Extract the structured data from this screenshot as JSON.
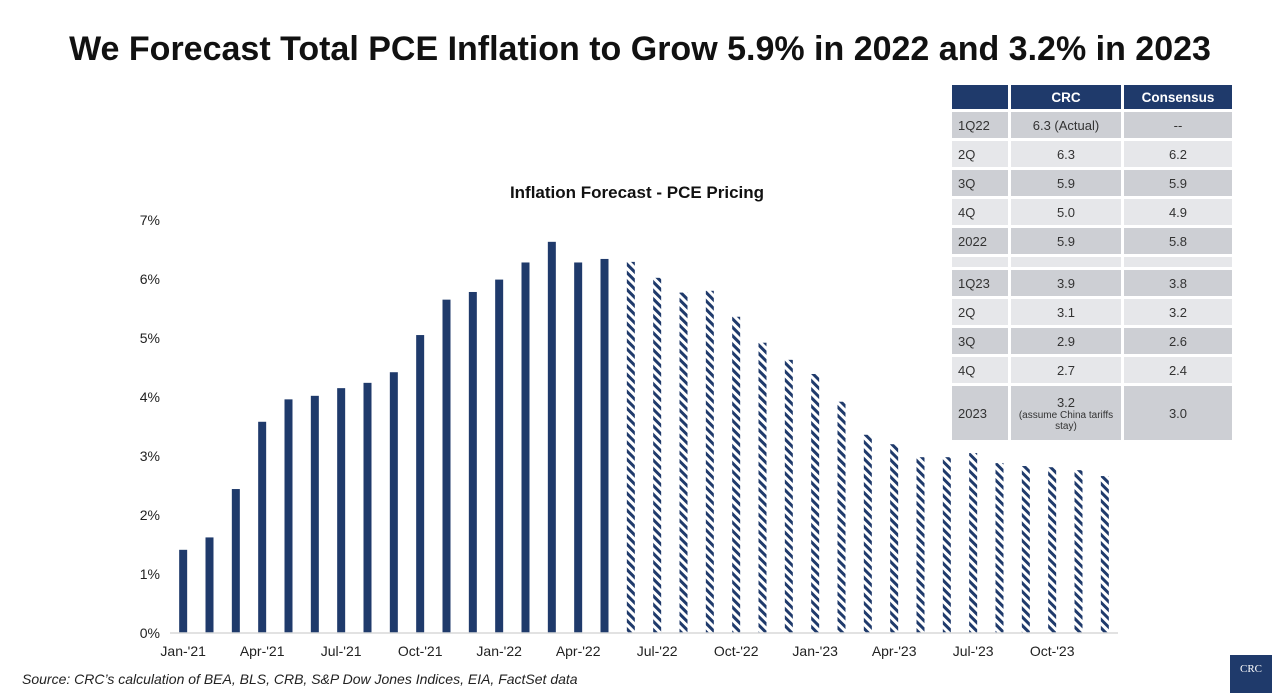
{
  "title": "We Forecast Total PCE Inflation to Grow 5.9% in 2022 and 3.2% in 2023",
  "source": "Source: CRC’s calculation of BEA, BLS, CRB, S&P Dow Jones Indices, EIA, FactSet data",
  "logo": "CRC",
  "colors": {
    "bar": "#1f3a6b",
    "header": "#1f3a6b"
  },
  "table": {
    "headers": [
      "",
      "CRC",
      "Consensus"
    ],
    "rows": [
      {
        "label": "1Q22",
        "crc": "6.3 (Actual)",
        "consensus": "--"
      },
      {
        "label": "2Q",
        "crc": "6.3",
        "consensus": "6.2"
      },
      {
        "label": "3Q",
        "crc": "5.9",
        "consensus": "5.9"
      },
      {
        "label": "4Q",
        "crc": "5.0",
        "consensus": "4.9"
      },
      {
        "label": "2022",
        "crc": "5.9",
        "consensus": "5.8"
      },
      {
        "label": "",
        "crc": "",
        "consensus": ""
      },
      {
        "label": "1Q23",
        "crc": "3.9",
        "consensus": "3.8"
      },
      {
        "label": "2Q",
        "crc": "3.1",
        "consensus": "3.2"
      },
      {
        "label": "3Q",
        "crc": "2.9",
        "consensus": "2.6"
      },
      {
        "label": "4Q",
        "crc": "2.7",
        "consensus": "2.4"
      },
      {
        "label": "2023",
        "crc": "3.2",
        "crc_note": "(assume China tariffs stay)",
        "consensus": "3.0"
      }
    ]
  },
  "chart_data": {
    "type": "bar",
    "title": "Inflation Forecast - PCE Pricing",
    "xlabel": "",
    "ylabel": "",
    "ylim": [
      0,
      7
    ],
    "yticks": [
      "0%",
      "1%",
      "2%",
      "3%",
      "4%",
      "5%",
      "6%",
      "7%"
    ],
    "xtick_labels": [
      "Jan-'21",
      "Apr-'21",
      "Jul-'21",
      "Oct-'21",
      "Jan-'22",
      "Apr-'22",
      "Jul-'22",
      "Oct-'22",
      "Jan-'23",
      "Apr-'23",
      "Jul-'23",
      "Oct-'23"
    ],
    "grid": false,
    "categories": [
      "Jan-21",
      "Feb-21",
      "Mar-21",
      "Apr-21",
      "May-21",
      "Jun-21",
      "Jul-21",
      "Aug-21",
      "Sep-21",
      "Oct-21",
      "Nov-21",
      "Dec-21",
      "Jan-22",
      "Feb-22",
      "Mar-22",
      "Apr-22",
      "May-22",
      "Jun-22",
      "Jul-22",
      "Aug-22",
      "Sep-22",
      "Oct-22",
      "Nov-22",
      "Dec-22",
      "Jan-23",
      "Feb-23",
      "Mar-23",
      "Apr-23",
      "May-23",
      "Jun-23",
      "Jul-23",
      "Aug-23",
      "Sep-23",
      "Oct-23",
      "Nov-23",
      "Dec-23"
    ],
    "values": [
      1.41,
      1.62,
      2.44,
      3.58,
      3.96,
      4.02,
      4.15,
      4.24,
      4.42,
      5.05,
      5.65,
      5.78,
      5.99,
      6.28,
      6.63,
      6.28,
      6.34,
      6.29,
      6.02,
      5.77,
      5.8,
      5.36,
      4.92,
      4.63,
      4.39,
      3.92,
      3.36,
      3.2,
      2.98,
      2.98,
      3.05,
      2.88,
      2.83,
      2.81,
      2.76,
      2.66
    ],
    "style": [
      "actual",
      "actual",
      "actual",
      "actual",
      "actual",
      "actual",
      "actual",
      "actual",
      "actual",
      "actual",
      "actual",
      "actual",
      "actual",
      "actual",
      "actual",
      "actual",
      "actual",
      "forecast",
      "forecast",
      "forecast",
      "forecast",
      "forecast",
      "forecast",
      "forecast",
      "forecast",
      "forecast",
      "forecast",
      "forecast",
      "forecast",
      "forecast",
      "forecast",
      "forecast",
      "forecast",
      "forecast",
      "forecast",
      "forecast"
    ]
  }
}
